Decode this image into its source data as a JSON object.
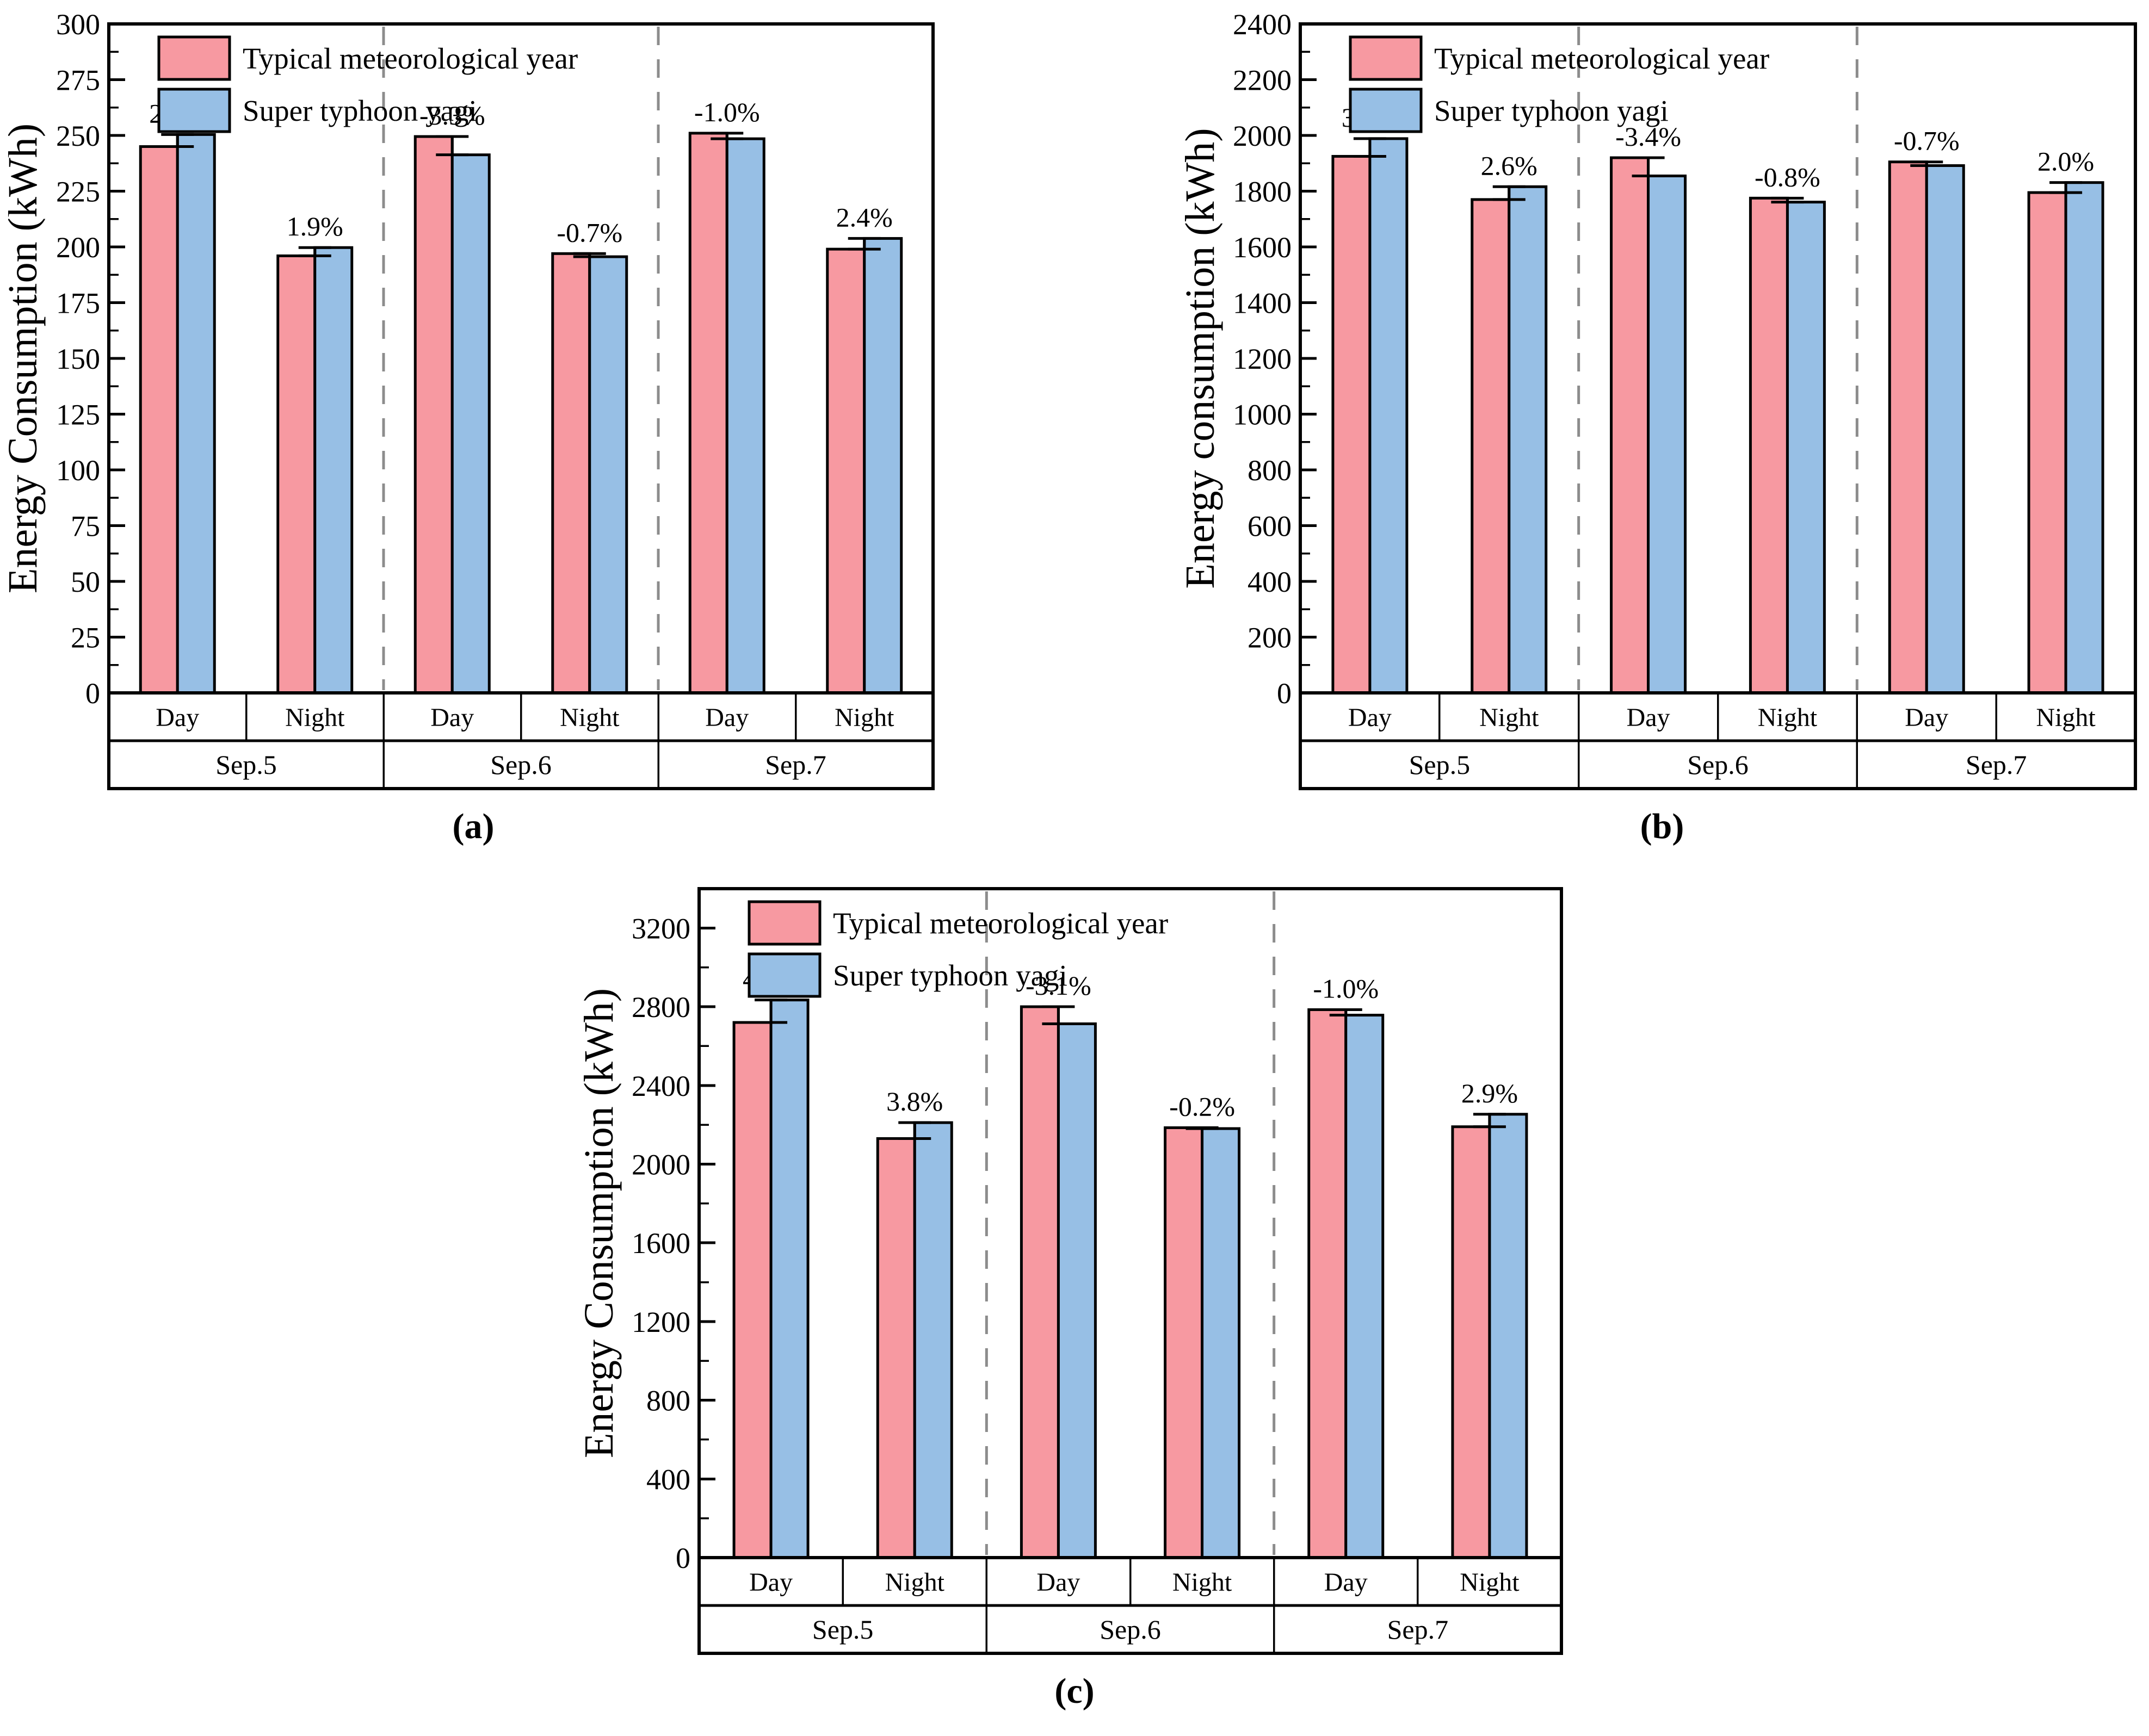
{
  "colors": {
    "tmy_fill": "#F799A1",
    "yagi_fill": "#97BFE5",
    "bar_border": "#000000",
    "percent_label": "#FF0000",
    "separator": "#8C8C8C",
    "axis": "#000000",
    "background": "#FFFFFF"
  },
  "legend": {
    "items": [
      {
        "label": "Typical meteorological year",
        "color_key": "tmy_fill"
      },
      {
        "label": "Super typhoon yagi",
        "color_key": "yagi_fill"
      }
    ]
  },
  "chart_data": [
    {
      "type": "bar",
      "caption": "(a)",
      "ylabel": "Energy Consumption (kWh)",
      "ylim": [
        0,
        300
      ],
      "ymajor": 25,
      "yminor": 12.5,
      "grid": false,
      "legend_position": "top-left-inside",
      "group_labels": [
        "Sep.5",
        "Sep.6",
        "Sep.7"
      ],
      "subgroup_labels": [
        "Day",
        "Night"
      ],
      "categories": [
        "Sep.5 Day",
        "Sep.5 Night",
        "Sep.6 Day",
        "Sep.6 Night",
        "Sep.7 Day",
        "Sep.7 Night"
      ],
      "series": [
        {
          "name": "Typical meteorological year",
          "values": [
            245,
            196,
            249.5,
            197,
            251,
            199
          ]
        },
        {
          "name": "Super typhoon yagi",
          "values": [
            250.4,
            199.7,
            241.3,
            195.6,
            248.5,
            203.8
          ]
        }
      ],
      "percent_labels": [
        "2.2%",
        "1.9%",
        "-3.3%",
        "-0.7%",
        "-1.0%",
        "2.4%"
      ]
    },
    {
      "type": "bar",
      "caption": "(b)",
      "ylabel": "Energy consumption (kWh)",
      "ylim": [
        0,
        2400
      ],
      "ymajor": 200,
      "yminor": 100,
      "grid": false,
      "legend_position": "top-left-inside",
      "group_labels": [
        "Sep.5",
        "Sep.6",
        "Sep.7"
      ],
      "subgroup_labels": [
        "Day",
        "Night"
      ],
      "categories": [
        "Sep.5 Day",
        "Sep.5 Night",
        "Sep.6 Day",
        "Sep.6 Night",
        "Sep.7 Day",
        "Sep.7 Night"
      ],
      "series": [
        {
          "name": "Typical meteorological year",
          "values": [
            1925,
            1770,
            1920,
            1775,
            1905,
            1795
          ]
        },
        {
          "name": "Super typhoon yagi",
          "values": [
            1988.5,
            1816.0,
            1854.7,
            1760.8,
            1891.7,
            1830.9
          ]
        }
      ],
      "percent_labels": [
        "3.3%",
        "2.6%",
        "-3.4%",
        "-0.8%",
        "-0.7%",
        "2.0%"
      ]
    },
    {
      "type": "bar",
      "caption": "(c)",
      "ylabel": "Energy Consumption (kWh)",
      "ylim": [
        0,
        3400
      ],
      "ymajor": 400,
      "yminor": 200,
      "grid": false,
      "legend_position": "top-left-inside",
      "group_labels": [
        "Sep.5",
        "Sep.6",
        "Sep.7"
      ],
      "subgroup_labels": [
        "Day",
        "Night"
      ],
      "categories": [
        "Sep.5 Day",
        "Sep.5 Night",
        "Sep.6 Day",
        "Sep.6 Night",
        "Sep.7 Day",
        "Sep.7 Night"
      ],
      "series": [
        {
          "name": "Typical meteorological year",
          "values": [
            2720,
            2130,
            2800,
            2185,
            2785,
            2190
          ]
        },
        {
          "name": "Super typhoon yagi",
          "values": [
            2834.2,
            2210.9,
            2713.2,
            2180.6,
            2757.2,
            2253.5
          ]
        }
      ],
      "percent_labels": [
        "4.2%",
        "3.8%",
        "-3.1%",
        "-0.2%",
        "-1.0%",
        "2.9%"
      ]
    }
  ]
}
